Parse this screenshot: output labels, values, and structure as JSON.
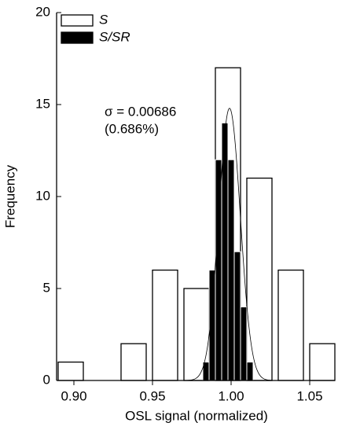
{
  "chart_data": {
    "type": "histogram",
    "x_label": "OSL signal (normalized)",
    "y_label": "Frequency",
    "xlim": [
      0.889,
      1.066
    ],
    "ylim": [
      0,
      20
    ],
    "xticks": [
      {
        "value": 0.9,
        "label": "0.90"
      },
      0.95,
      {
        "value": 1.0,
        "label": "1.00"
      },
      1.05
    ],
    "yticks": [
      0,
      5,
      10,
      15,
      20
    ],
    "legend": "top-left",
    "series": [
      {
        "name": "S",
        "color": "#ffffff",
        "bins": [
          0.888,
          0.908,
          0.928,
          0.948,
          0.968,
          0.988,
          1.008,
          1.028,
          1.048,
          1.068
        ],
        "values": [
          1,
          0,
          2,
          6,
          5,
          17,
          11,
          6,
          2
        ]
      },
      {
        "name": "S/SR",
        "color": "#000000",
        "bins": [
          0.982,
          0.986,
          0.99,
          0.994,
          0.998,
          1.002,
          1.006,
          1.01,
          1.014
        ],
        "values": [
          1,
          6,
          12,
          14,
          12,
          7,
          4,
          1
        ]
      }
    ],
    "curve": {
      "mean": 0.999,
      "sd": 0.00686,
      "peak": 14.8
    },
    "annotations": [
      "σ = 0.00686",
      "(0.686%)"
    ]
  }
}
